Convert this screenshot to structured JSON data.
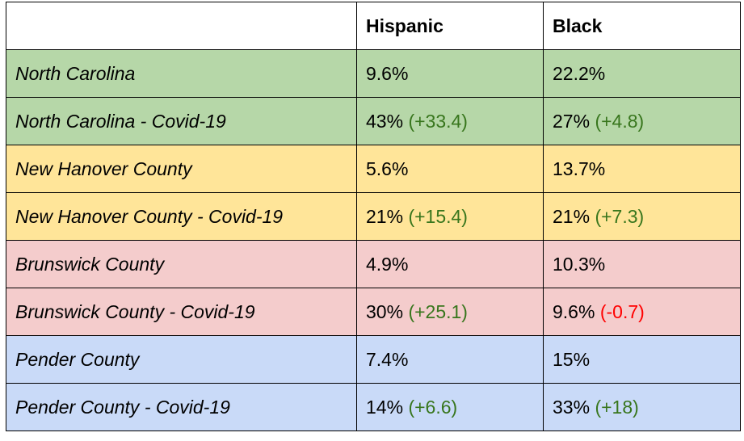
{
  "header": {
    "col0": "",
    "col1": "Hispanic",
    "col2": "Black"
  },
  "colors": {
    "green_row": "#b6d7a8",
    "yellow_row": "#ffe599",
    "red_row": "#f4cccc",
    "blue_row": "#c9daf8",
    "positive_delta": "#38761d",
    "negative_delta": "#ff0000"
  },
  "rows": [
    {
      "label": "North Carolina",
      "hispanic": "9.6%",
      "hispanic_delta": "",
      "black": "22.2%",
      "black_delta": "",
      "color": "#b6d7a8"
    },
    {
      "label": "North Carolina - Covid-19",
      "hispanic": "43%",
      "hispanic_delta": "(+33.4)",
      "black": "27%",
      "black_delta": "(+4.8)",
      "color": "#b6d7a8"
    },
    {
      "label": "New Hanover County",
      "hispanic": "5.6%",
      "hispanic_delta": "",
      "black": "13.7%",
      "black_delta": "",
      "color": "#ffe599"
    },
    {
      "label": "New Hanover County - Covid-19",
      "hispanic": "21%",
      "hispanic_delta": "(+15.4)",
      "black": "21%",
      "black_delta": "(+7.3)",
      "color": "#ffe599"
    },
    {
      "label": "Brunswick County",
      "hispanic": "4.9%",
      "hispanic_delta": "",
      "black": "10.3%",
      "black_delta": "",
      "color": "#f4cccc"
    },
    {
      "label": "Brunswick County - Covid-19",
      "hispanic": "30%",
      "hispanic_delta": "(+25.1)",
      "black": "9.6%",
      "black_delta": "(-0.7)",
      "color": "#f4cccc"
    },
    {
      "label": "Pender County",
      "hispanic": "7.4%",
      "hispanic_delta": "",
      "black": "15%",
      "black_delta": "",
      "color": "#c9daf8"
    },
    {
      "label": "Pender County - Covid-19",
      "hispanic": "14%",
      "hispanic_delta": "(+6.6)",
      "black": "33%",
      "black_delta": "(+18)",
      "color": "#c9daf8"
    }
  ]
}
